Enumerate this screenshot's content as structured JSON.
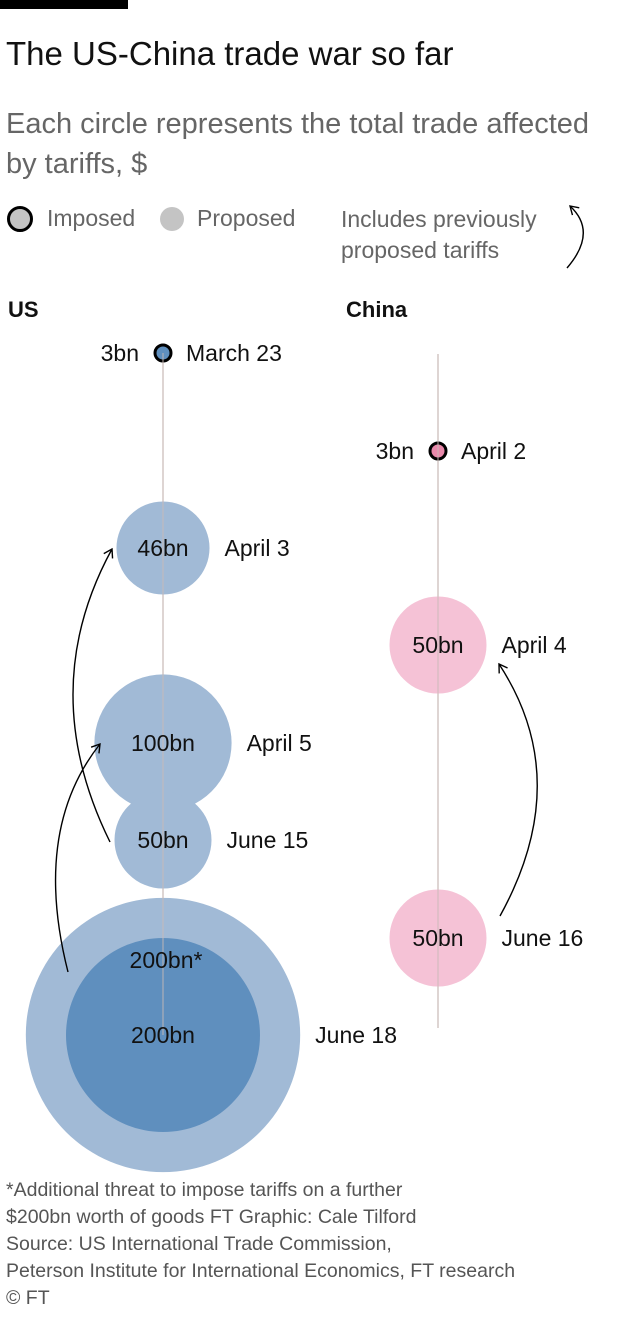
{
  "title": "The US-China trade war so far",
  "subtitle": "Each circle represents the total trade affected by tariffs, $",
  "legend": {
    "imposed": "Imposed",
    "proposed": "Proposed",
    "note": "Includes previously proposed tariffs"
  },
  "columns": {
    "us": "US",
    "china": "China"
  },
  "footnote": {
    "line1": "*Additional threat to impose tariffs on a further",
    "line2": "$200bn worth of goods  FT Graphic: Cale Tilford",
    "line3": "Source: US International Trade Commission,",
    "line4": "Peterson Institute for International Economics, FT research",
    "line5": "© FT"
  },
  "colors": {
    "us_proposed": "#a1bad6",
    "us_imposed": "#5f8fbe",
    "china_proposed": "#f5c2d6",
    "china_imposed": "#e888aa",
    "axis": "#c9b9b6",
    "legend_gray": "#c4c4c4"
  },
  "chart_data": {
    "type": "bubble-timeline",
    "series": [
      {
        "name": "US",
        "events": [
          {
            "date": "March 23",
            "value": 3,
            "value_label": "3bn",
            "status": "imposed"
          },
          {
            "date": "April 3",
            "value": 46,
            "value_label": "46bn",
            "status": "proposed"
          },
          {
            "date": "April 5",
            "value": 100,
            "value_label": "100bn",
            "status": "proposed"
          },
          {
            "date": "June 15",
            "value": 50,
            "value_label": "50bn",
            "status": "proposed"
          },
          {
            "date": "June 18",
            "value": 200,
            "value_label": "200bn",
            "status": "proposed",
            "extra_value": 200,
            "extra_label": "200bn*"
          }
        ]
      },
      {
        "name": "China",
        "events": [
          {
            "date": "April 2",
            "value": 3,
            "value_label": "3bn",
            "status": "imposed"
          },
          {
            "date": "April 4",
            "value": 50,
            "value_label": "50bn",
            "status": "proposed"
          },
          {
            "date": "June 16",
            "value": 50,
            "value_label": "50bn",
            "status": "proposed"
          }
        ]
      }
    ],
    "links": [
      {
        "series": "US",
        "from": "June 15",
        "to": "April 3"
      },
      {
        "series": "US",
        "from": "June 18",
        "to": "April 5"
      },
      {
        "series": "China",
        "from": "June 16",
        "to": "April 4"
      }
    ]
  }
}
